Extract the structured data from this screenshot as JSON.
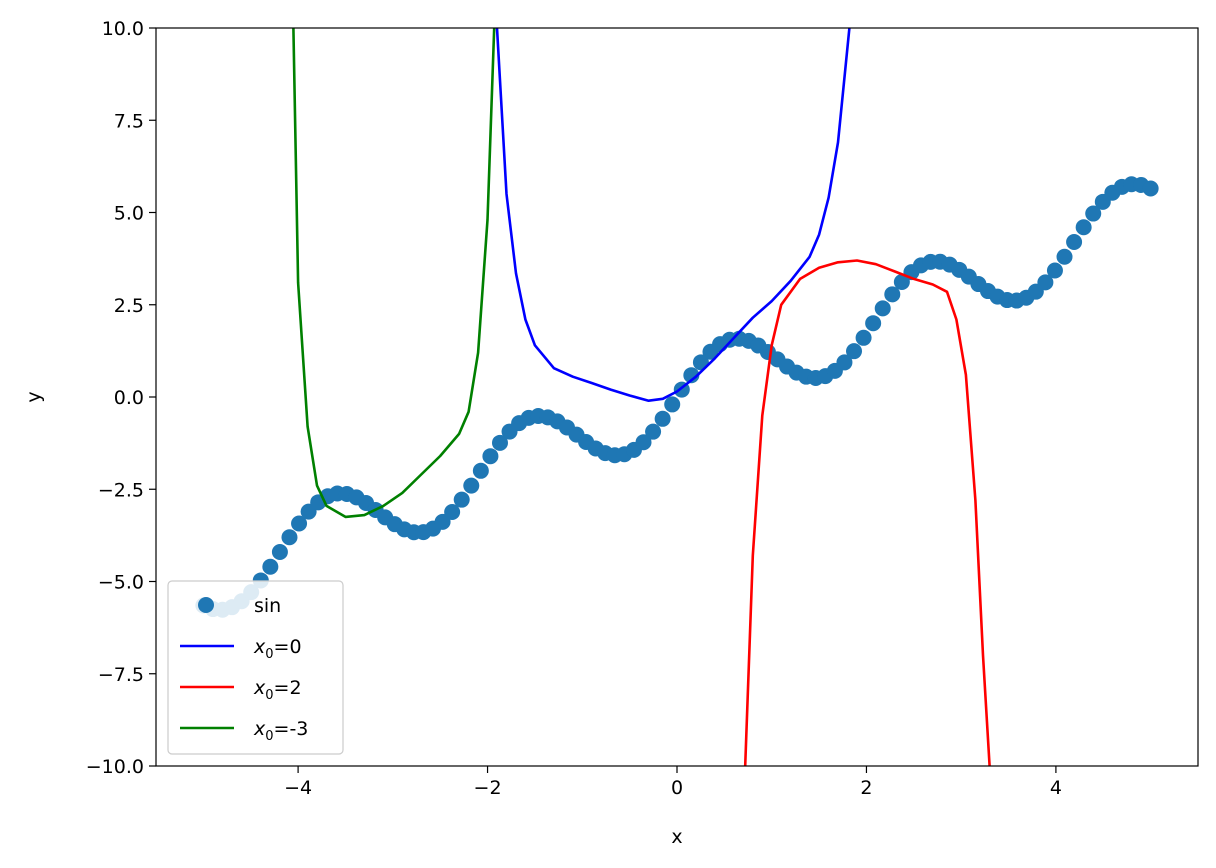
{
  "chart_data": {
    "type": "line",
    "title": "",
    "xlabel": "x",
    "ylabel": "y",
    "xlim": [
      -5.5,
      5.5
    ],
    "ylim": [
      -10,
      10
    ],
    "grid": false,
    "legend_position": "lower-left",
    "x_ticks": [
      -4,
      -2,
      0,
      2,
      4
    ],
    "x_tick_labels": [
      "−4",
      "−2",
      "0",
      "2",
      "4"
    ],
    "y_ticks": [
      -10,
      -7.5,
      -5,
      -2.5,
      0,
      2.5,
      5,
      7.5,
      10
    ],
    "y_tick_labels": [
      "−10.0",
      "−7.5",
      "−5.0",
      "−2.5",
      "0.0",
      "2.5",
      "5.0",
      "7.5",
      "10.0"
    ],
    "series": [
      {
        "name": "sin",
        "kind": "scatter",
        "color": "#1f77b4",
        "x_range": [
          -5,
          5
        ],
        "num_points": 100,
        "function": "x + sin(3x)"
      },
      {
        "name": "x0=0",
        "label_base": "x",
        "label_sub": "0",
        "label_rest": "=0",
        "kind": "line",
        "color": "#0000ff",
        "points": [
          [
            -1.9,
            10.0
          ],
          [
            -1.8,
            5.5
          ],
          [
            -1.7,
            3.35
          ],
          [
            -1.6,
            2.1
          ],
          [
            -1.5,
            1.4
          ],
          [
            -1.3,
            0.78
          ],
          [
            -1.1,
            0.55
          ],
          [
            -0.9,
            0.38
          ],
          [
            -0.7,
            0.2
          ],
          [
            -0.5,
            0.04
          ],
          [
            -0.3,
            -0.1
          ],
          [
            -0.15,
            -0.05
          ],
          [
            0.0,
            0.15
          ],
          [
            0.2,
            0.55
          ],
          [
            0.4,
            1.05
          ],
          [
            0.6,
            1.6
          ],
          [
            0.8,
            2.15
          ],
          [
            1.0,
            2.6
          ],
          [
            1.2,
            3.15
          ],
          [
            1.4,
            3.8
          ],
          [
            1.5,
            4.4
          ],
          [
            1.6,
            5.4
          ],
          [
            1.7,
            6.9
          ],
          [
            1.82,
            10.0
          ]
        ]
      },
      {
        "name": "x0=2",
        "label_base": "x",
        "label_sub": "0",
        "label_rest": "=2",
        "kind": "line",
        "color": "#ff0000",
        "points": [
          [
            0.72,
            -10.0
          ],
          [
            0.8,
            -4.3
          ],
          [
            0.9,
            -0.5
          ],
          [
            1.0,
            1.4
          ],
          [
            1.1,
            2.5
          ],
          [
            1.3,
            3.2
          ],
          [
            1.5,
            3.5
          ],
          [
            1.7,
            3.65
          ],
          [
            1.9,
            3.7
          ],
          [
            2.1,
            3.6
          ],
          [
            2.3,
            3.4
          ],
          [
            2.5,
            3.2
          ],
          [
            2.7,
            3.05
          ],
          [
            2.85,
            2.85
          ],
          [
            2.95,
            2.1
          ],
          [
            3.05,
            0.6
          ],
          [
            3.15,
            -2.8
          ],
          [
            3.23,
            -7.0
          ],
          [
            3.3,
            -10.0
          ]
        ]
      },
      {
        "name": "x0=-3",
        "label_base": "x",
        "label_sub": "0",
        "label_rest": "=-3",
        "kind": "line",
        "color": "#008000",
        "points": [
          [
            -4.05,
            10.0
          ],
          [
            -4.0,
            3.1
          ],
          [
            -3.9,
            -0.8
          ],
          [
            -3.8,
            -2.4
          ],
          [
            -3.7,
            -2.95
          ],
          [
            -3.5,
            -3.25
          ],
          [
            -3.3,
            -3.2
          ],
          [
            -3.1,
            -2.95
          ],
          [
            -2.9,
            -2.6
          ],
          [
            -2.7,
            -2.1
          ],
          [
            -2.5,
            -1.6
          ],
          [
            -2.3,
            -1.0
          ],
          [
            -2.2,
            -0.4
          ],
          [
            -2.1,
            1.2
          ],
          [
            -2.0,
            4.8
          ],
          [
            -1.93,
            10.0
          ]
        ]
      }
    ]
  }
}
